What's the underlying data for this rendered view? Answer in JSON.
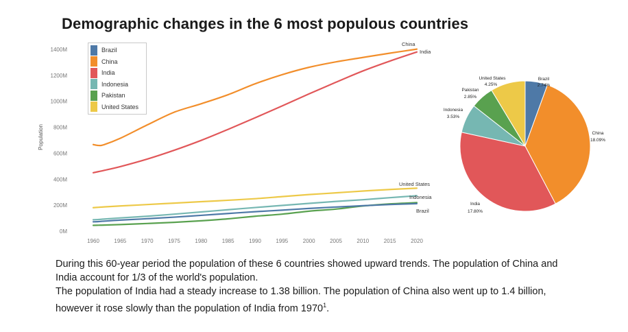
{
  "page_title": "Demographic changes in the 6 most populous countries",
  "colors": {
    "Brazil": "#4e79a7",
    "China": "#f28e2b",
    "India": "#e15759",
    "Indonesia": "#76b7b2",
    "Pakistan": "#59a14f",
    "United States": "#edc948"
  },
  "legend": [
    "Brazil",
    "China",
    "India",
    "Indonesia",
    "Pakistan",
    "United States"
  ],
  "chart_data": [
    {
      "type": "line",
      "title": "",
      "ylabel": "Population",
      "xlabel": "",
      "x": [
        1960,
        1961,
        1962,
        1965,
        1970,
        1975,
        1980,
        1985,
        1990,
        1995,
        2000,
        2005,
        2010,
        2015,
        2020
      ],
      "x_ticks": [
        "1960",
        "1965",
        "1970",
        "1975",
        "1980",
        "1985",
        "1990",
        "1995",
        "2000",
        "2005",
        "2010",
        "2015",
        "2020"
      ],
      "y_ticks": [
        "0M",
        "200M",
        "400M",
        "600M",
        "800M",
        "1000M",
        "1200M",
        "1400M"
      ],
      "ylim": [
        0,
        1400
      ],
      "series": [
        {
          "name": "China",
          "end_label": "China",
          "values": [
            667,
            660,
            666,
            715,
            818,
            916,
            981,
            1051,
            1135,
            1205,
            1262,
            1304,
            1338,
            1371,
            1402
          ]
        },
        {
          "name": "India",
          "end_label": "India",
          "values": [
            450,
            459,
            468,
            497,
            555,
            623,
            699,
            784,
            873,
            964,
            1057,
            1147,
            1234,
            1310,
            1380
          ]
        },
        {
          "name": "United States",
          "end_label": "United States",
          "values": [
            181,
            184,
            187,
            194,
            205,
            216,
            227,
            238,
            250,
            266,
            282,
            295,
            309,
            321,
            331
          ]
        },
        {
          "name": "Indonesia",
          "end_label": "Indonesia",
          "values": [
            88,
            90,
            93,
            102,
            115,
            131,
            148,
            165,
            182,
            198,
            214,
            229,
            242,
            258,
            273
          ]
        },
        {
          "name": "Brazil",
          "end_label": "Brazil",
          "values": [
            72,
            74,
            77,
            85,
            96,
            108,
            122,
            136,
            150,
            162,
            175,
            186,
            196,
            205,
            212
          ]
        },
        {
          "name": "Pakistan",
          "end_label": "",
          "values": [
            45,
            46,
            47,
            51,
            59,
            68,
            80,
            95,
            115,
            131,
            154,
            170,
            194,
            210,
            220
          ]
        }
      ]
    },
    {
      "type": "pie",
      "title": "",
      "slices": [
        {
          "name": "Brazil",
          "value": 2.74,
          "label": "Brazil",
          "pct_label": "2.74%"
        },
        {
          "name": "China",
          "value": 18.09,
          "label": "China",
          "pct_label": "18.09%"
        },
        {
          "name": "India",
          "value": 17.8,
          "label": "India",
          "pct_label": "17.80%"
        },
        {
          "name": "Indonesia",
          "value": 3.53,
          "label": "Indonesia",
          "pct_label": "3.53%"
        },
        {
          "name": "Pakistan",
          "value": 2.85,
          "label": "Pakistan",
          "pct_label": "2.85%"
        },
        {
          "name": "United States",
          "value": 4.25,
          "label": "United States",
          "pct_label": "4.25%"
        }
      ]
    }
  ],
  "caption": {
    "paragraph_1": "During this 60-year period the population of these 6 countries showed upward trends. The population of China and India account for 1/3 of the world's population.",
    "paragraph_2": "The population of India had a steady increase to 1.38 billion. The population of China also went up to 1.4 billion, however it rose slowly than the population of India from 1970",
    "footnote_marker": "1",
    "paragraph_2_end": "."
  }
}
